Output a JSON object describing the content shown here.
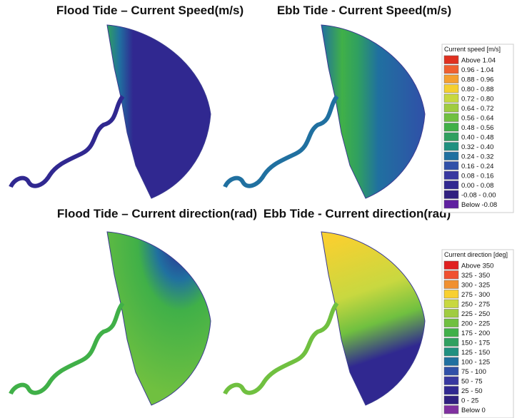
{
  "panels": [
    {
      "title": "Flood Tide – Current Speed(m/s)"
    },
    {
      "title": "Ebb Tide - Current Speed(m/s)"
    },
    {
      "title": "Flood Tide – Current direction(rad)"
    },
    {
      "title": "Ebb Tide - Current direction(rad)"
    }
  ],
  "legends": [
    {
      "title": "Current speed [m/s]",
      "items": [
        {
          "label": "Above  1.04",
          "color": "#e03020"
        },
        {
          "label": "0.96 -  1.04",
          "color": "#f06030"
        },
        {
          "label": "0.88 -  0.96",
          "color": "#f5a030"
        },
        {
          "label": "0.80 -  0.88",
          "color": "#f5d030"
        },
        {
          "label": "0.72 -  0.80",
          "color": "#c8d840"
        },
        {
          "label": "0.64 -  0.72",
          "color": "#a0cc40"
        },
        {
          "label": "0.56 -  0.64",
          "color": "#70c040"
        },
        {
          "label": "0.48 -  0.56",
          "color": "#40b048"
        },
        {
          "label": "0.40 -  0.48",
          "color": "#30a060"
        },
        {
          "label": "0.32 -  0.40",
          "color": "#209080"
        },
        {
          "label": "0.24 -  0.32",
          "color": "#2070a0"
        },
        {
          "label": "0.16 -  0.24",
          "color": "#3050a8"
        },
        {
          "label": "0.08 -  0.16",
          "color": "#3838a0"
        },
        {
          "label": "0.00 -  0.08",
          "color": "#302890"
        },
        {
          "label": "-0.08 -  0.00",
          "color": "#302080"
        },
        {
          "label": "Below -0.08",
          "color": "#6020a0"
        }
      ]
    },
    {
      "title": "Current direction [deg]",
      "items": [
        {
          "label": "Above 350",
          "color": "#e02020"
        },
        {
          "label": "325 - 350",
          "color": "#f05030"
        },
        {
          "label": "300 - 325",
          "color": "#f09030"
        },
        {
          "label": "275 - 300",
          "color": "#f8d030"
        },
        {
          "label": "250 - 275",
          "color": "#c8d840"
        },
        {
          "label": "225 - 250",
          "color": "#a0cc40"
        },
        {
          "label": "200 - 225",
          "color": "#70c040"
        },
        {
          "label": "175 - 200",
          "color": "#40b048"
        },
        {
          "label": "150 - 175",
          "color": "#30a060"
        },
        {
          "label": "125 - 150",
          "color": "#209080"
        },
        {
          "label": "100 - 125",
          "color": "#2070a0"
        },
        {
          "label": "75 - 100",
          "color": "#3050a8"
        },
        {
          "label": "50 -  75",
          "color": "#3838a0"
        },
        {
          "label": "25 -  50",
          "color": "#302890"
        },
        {
          "label": "0 -  25",
          "color": "#302080"
        },
        {
          "label": "Below    0",
          "color": "#8030a0"
        }
      ]
    }
  ]
}
